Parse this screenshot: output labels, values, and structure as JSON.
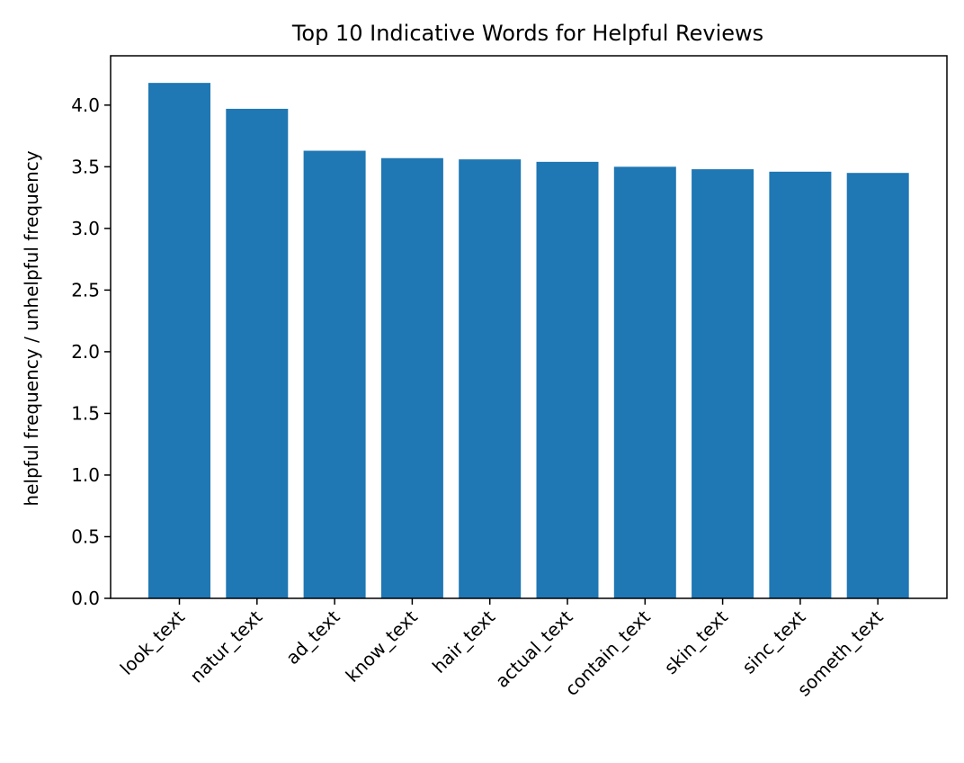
{
  "chart_data": {
    "type": "bar",
    "title": "Top 10 Indicative Words for Helpful Reviews",
    "xlabel": "",
    "ylabel": "helpful frequency / unhelpful frequency",
    "categories": [
      "look_text",
      "natur_text",
      "ad_text",
      "know_text",
      "hair_text",
      "actual_text",
      "contain_text",
      "skin_text",
      "sinc_text",
      "someth_text"
    ],
    "values": [
      4.18,
      3.97,
      3.63,
      3.57,
      3.56,
      3.54,
      3.5,
      3.48,
      3.46,
      3.45
    ],
    "ylim": [
      0,
      4.4
    ],
    "yticks": [
      "0.0",
      "0.5",
      "1.0",
      "1.5",
      "2.0",
      "2.5",
      "3.0",
      "3.5",
      "4.0"
    ],
    "bar_color": "#1f77b4",
    "grid": false
  }
}
